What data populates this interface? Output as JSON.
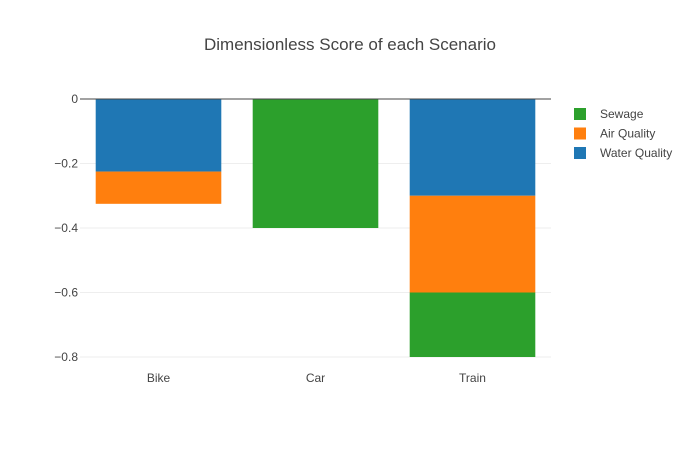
{
  "chart_data": {
    "type": "bar",
    "barmode": "stack",
    "title": "Dimensionless Score of each Scenario",
    "xlabel": "",
    "ylabel": "",
    "categories": [
      "Bike",
      "Car",
      "Train"
    ],
    "series": [
      {
        "name": "Water Quality",
        "color": "#1f77b4",
        "values": [
          -0.225,
          0,
          -0.3
        ]
      },
      {
        "name": "Air Quality",
        "color": "#ff7f0e",
        "values": [
          -0.1,
          0,
          -0.3
        ]
      },
      {
        "name": "Sewage",
        "color": "#2ca02c",
        "values": [
          0,
          -0.4,
          -0.2
        ]
      }
    ],
    "legend_order": [
      "Sewage",
      "Air Quality",
      "Water Quality"
    ],
    "ylim": [
      -0.8,
      0
    ],
    "yticks": [
      0,
      -0.2,
      -0.4,
      -0.6,
      -0.8
    ],
    "ytick_labels": [
      "0",
      "−0.2",
      "−0.4",
      "−0.6",
      "−0.8"
    ],
    "grid": true,
    "legend_position": "top-right"
  }
}
